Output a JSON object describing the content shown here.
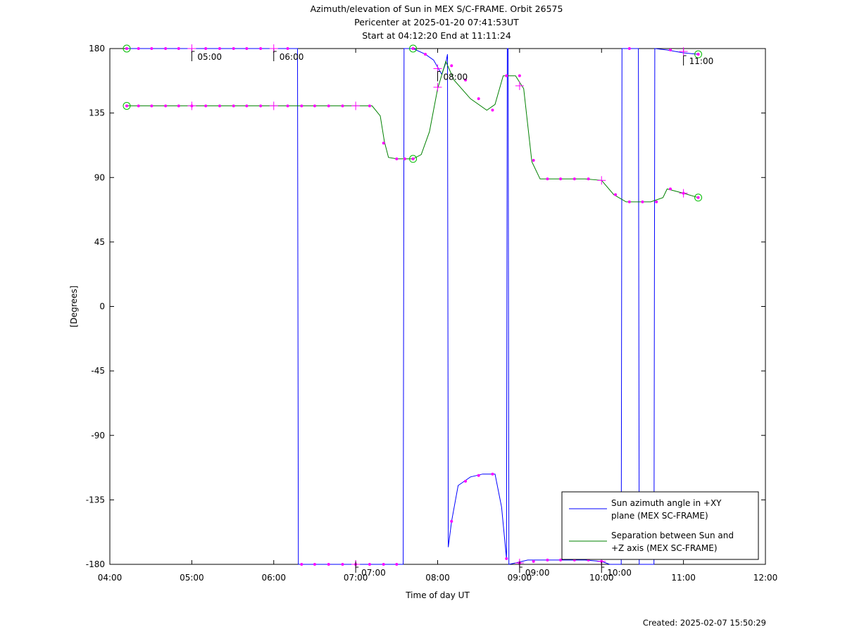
{
  "chart_data": {
    "type": "line",
    "title": "Azimuth/elevation of Sun in MEX S/C-FRAME.  Orbit 26575",
    "subtitle_1": "Pericenter at 2025-01-20 07:41:53UT",
    "subtitle_2": "Start at 04:12:20 End at 11:11:24",
    "xlabel": "Time of day UT",
    "ylabel": "[Degrees]",
    "xlim": [
      4.0,
      12.0
    ],
    "ylim": [
      -180,
      180
    ],
    "x_ticks": [
      4,
      5,
      6,
      7,
      8,
      9,
      10,
      11,
      12
    ],
    "x_tick_labels": [
      "04:00",
      "05:00",
      "06:00",
      "07:00",
      "08:00",
      "09:00",
      "10:00",
      "11:00",
      "12:00"
    ],
    "y_ticks": [
      180,
      135,
      90,
      45,
      0,
      -45,
      -90,
      -135,
      -180
    ],
    "y_tick_labels": [
      "180",
      "135",
      "90",
      "45",
      "0",
      "-45",
      "-90",
      "-135",
      "-180"
    ],
    "grid": false,
    "legend_position": "bottom-right",
    "series": [
      {
        "name": "Sun azimuth angle in +XY plane (MEX SC-FRAME)",
        "legend_line1": "Sun azimuth angle in +XY",
        "legend_line2": "plane (MEX SC-FRAME)",
        "color": "#0000ff",
        "points": [
          [
            4.206,
            180
          ],
          [
            4.5,
            180
          ],
          [
            4.8,
            180
          ],
          [
            5.0,
            180
          ],
          [
            5.2,
            180
          ],
          [
            5.5,
            180
          ],
          [
            5.8,
            180
          ],
          [
            6.0,
            180
          ],
          [
            6.17,
            180
          ],
          [
            6.29,
            180
          ],
          [
            6.3,
            -180
          ],
          [
            6.5,
            -180
          ],
          [
            6.8,
            -180
          ],
          [
            7.0,
            -180
          ],
          [
            7.2,
            -180
          ],
          [
            7.45,
            -180
          ],
          [
            7.58,
            -180
          ],
          [
            7.59,
            180
          ],
          [
            7.7,
            180
          ],
          [
            7.85,
            176
          ],
          [
            7.95,
            172
          ],
          [
            8.05,
            162
          ],
          [
            8.1,
            170
          ],
          [
            8.12,
            176
          ],
          [
            8.13,
            -168
          ],
          [
            8.17,
            -150
          ],
          [
            8.25,
            -125
          ],
          [
            8.4,
            -119
          ],
          [
            8.55,
            -117
          ],
          [
            8.7,
            -117
          ],
          [
            8.78,
            -140
          ],
          [
            8.84,
            -176
          ],
          [
            8.85,
            180
          ],
          [
            8.86,
            180
          ],
          [
            8.87,
            -180
          ],
          [
            8.95,
            -179
          ],
          [
            9.1,
            -177
          ],
          [
            9.3,
            -177
          ],
          [
            9.6,
            -177
          ],
          [
            9.8,
            -177
          ],
          [
            10.0,
            -178
          ],
          [
            10.1,
            -180
          ],
          [
            10.24,
            -180
          ],
          [
            10.25,
            180
          ],
          [
            10.38,
            180
          ],
          [
            10.45,
            180
          ],
          [
            10.46,
            -180
          ],
          [
            10.64,
            -180
          ],
          [
            10.65,
            180
          ],
          [
            10.8,
            179
          ],
          [
            11.0,
            177
          ],
          [
            11.18,
            176
          ]
        ],
        "markers": [
          [
            4.206,
            180
          ],
          [
            7.7,
            180
          ],
          [
            11.18,
            176
          ]
        ]
      },
      {
        "name": "Separation between Sun and +Z axis (MEX SC-FRAME)",
        "legend_line1": "Separation between Sun and",
        "legend_line2": "+Z axis (MEX SC-FRAME)",
        "color": "#008000",
        "points": [
          [
            4.206,
            140
          ],
          [
            4.5,
            140
          ],
          [
            5.0,
            140
          ],
          [
            5.5,
            140
          ],
          [
            6.0,
            140
          ],
          [
            6.5,
            140
          ],
          [
            7.0,
            140
          ],
          [
            7.2,
            140
          ],
          [
            7.3,
            133
          ],
          [
            7.35,
            115
          ],
          [
            7.4,
            104
          ],
          [
            7.5,
            103
          ],
          [
            7.7,
            103
          ],
          [
            7.8,
            106
          ],
          [
            7.9,
            122
          ],
          [
            8.0,
            152
          ],
          [
            8.1,
            171
          ],
          [
            8.2,
            158
          ],
          [
            8.4,
            145
          ],
          [
            8.6,
            137
          ],
          [
            8.7,
            141
          ],
          [
            8.8,
            161
          ],
          [
            8.95,
            161
          ],
          [
            9.05,
            152
          ],
          [
            9.15,
            101
          ],
          [
            9.25,
            89
          ],
          [
            9.4,
            89
          ],
          [
            9.6,
            89
          ],
          [
            9.8,
            89
          ],
          [
            10.0,
            88
          ],
          [
            10.15,
            78
          ],
          [
            10.3,
            73
          ],
          [
            10.6,
            73
          ],
          [
            10.75,
            76
          ],
          [
            10.8,
            82
          ],
          [
            11.0,
            79
          ],
          [
            11.18,
            76
          ]
        ],
        "markers": [
          [
            4.206,
            140
          ],
          [
            7.7,
            103
          ],
          [
            11.18,
            76
          ]
        ]
      }
    ],
    "dots": [
      [
        4.206,
        180
      ],
      [
        4.35,
        180
      ],
      [
        4.51,
        180
      ],
      [
        4.68,
        180
      ],
      [
        4.84,
        180
      ],
      [
        5.17,
        180
      ],
      [
        5.34,
        180
      ],
      [
        5.51,
        180
      ],
      [
        5.67,
        180
      ],
      [
        5.84,
        180
      ],
      [
        6.17,
        180
      ],
      [
        4.206,
        140
      ],
      [
        4.35,
        140
      ],
      [
        4.51,
        140
      ],
      [
        4.68,
        140
      ],
      [
        4.84,
        140
      ],
      [
        5.0,
        140
      ],
      [
        5.17,
        140
      ],
      [
        5.34,
        140
      ],
      [
        5.51,
        140
      ],
      [
        5.67,
        140
      ],
      [
        5.84,
        140
      ],
      [
        6.17,
        140
      ],
      [
        6.34,
        140
      ],
      [
        6.5,
        140
      ],
      [
        6.67,
        140
      ],
      [
        6.84,
        140
      ],
      [
        7.17,
        140
      ],
      [
        7.34,
        114
      ],
      [
        7.5,
        103
      ],
      [
        7.6,
        103
      ],
      [
        7.7,
        103
      ],
      [
        6.34,
        -180
      ],
      [
        6.5,
        -180
      ],
      [
        6.67,
        -180
      ],
      [
        6.84,
        -180
      ],
      [
        7.0,
        -180
      ],
      [
        7.17,
        -180
      ],
      [
        7.34,
        -180
      ],
      [
        7.5,
        -180
      ],
      [
        7.7,
        180
      ],
      [
        7.85,
        176
      ],
      [
        8.17,
        168
      ],
      [
        8.34,
        158
      ],
      [
        8.5,
        145
      ],
      [
        8.67,
        137
      ],
      [
        8.84,
        161
      ],
      [
        9.0,
        161
      ],
      [
        9.17,
        102
      ],
      [
        9.34,
        89
      ],
      [
        9.5,
        89
      ],
      [
        9.67,
        89
      ],
      [
        9.84,
        89
      ],
      [
        10.17,
        78
      ],
      [
        10.34,
        73
      ],
      [
        10.5,
        73
      ],
      [
        10.67,
        73
      ],
      [
        10.84,
        82
      ],
      [
        11.0,
        79
      ],
      [
        11.18,
        76
      ],
      [
        8.17,
        -150
      ],
      [
        8.34,
        -122
      ],
      [
        8.5,
        -118
      ],
      [
        8.67,
        -117
      ],
      [
        8.84,
        -176
      ],
      [
        9.0,
        -179
      ],
      [
        9.17,
        -178
      ],
      [
        9.34,
        -177
      ],
      [
        9.5,
        -177
      ],
      [
        9.67,
        -177
      ],
      [
        9.84,
        -177
      ],
      [
        10.0,
        -178
      ],
      [
        10.34,
        180
      ],
      [
        10.84,
        179
      ],
      [
        11.18,
        176
      ]
    ],
    "crosses": [
      [
        5.0,
        180
      ],
      [
        6.0,
        180
      ],
      [
        5.0,
        140
      ],
      [
        6.0,
        140
      ],
      [
        7.0,
        140
      ],
      [
        7.0,
        -180
      ],
      [
        8.0,
        166
      ],
      [
        8.0,
        153
      ],
      [
        9.0,
        154
      ],
      [
        10.0,
        88
      ],
      [
        11.0,
        178
      ],
      [
        11.0,
        79
      ],
      [
        9.0,
        -179
      ],
      [
        10.0,
        -178
      ]
    ],
    "annotations": [
      {
        "x": 5.0,
        "y": 180,
        "label": "05:00",
        "place": "below"
      },
      {
        "x": 6.0,
        "y": 180,
        "label": "06:00",
        "place": "below"
      },
      {
        "x": 7.0,
        "y": -180,
        "label": "07:00",
        "place": "above"
      },
      {
        "x": 8.0,
        "y": 166,
        "label": "08:00",
        "place": "below"
      },
      {
        "x": 9.0,
        "y": -180,
        "label": "09:00",
        "place": "above"
      },
      {
        "x": 10.0,
        "y": -180,
        "label": "10:00",
        "place": "above"
      },
      {
        "x": 11.0,
        "y": 177,
        "label": "11:00",
        "place": "below"
      }
    ]
  },
  "footer": {
    "created": "Created: 2025-02-07 15:50:29"
  },
  "colors": {
    "axes": "#000000",
    "markers": "#ff00ff",
    "circle_markers": "#00bb00"
  }
}
